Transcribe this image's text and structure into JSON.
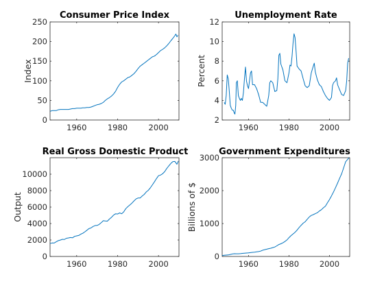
{
  "figure": {
    "background": "#ffffff",
    "line_color": "#0072bd"
  },
  "chart_data": [
    {
      "type": "line",
      "title": "Consumer Price Index",
      "xlabel": "",
      "ylabel": "Index",
      "xlim": [
        1947,
        2010
      ],
      "ylim": [
        0,
        250
      ],
      "xticks": [
        1960,
        1980,
        2000
      ],
      "yticks": [
        0,
        50,
        100,
        150,
        200,
        250
      ],
      "grid": false,
      "x": [
        1947,
        1948,
        1949,
        1950,
        1951,
        1952,
        1953,
        1954,
        1955,
        1956,
        1957,
        1958,
        1959,
        1960,
        1961,
        1962,
        1963,
        1964,
        1965,
        1966,
        1967,
        1968,
        1969,
        1970,
        1971,
        1972,
        1973,
        1974,
        1975,
        1976,
        1977,
        1978,
        1979,
        1980,
        1981,
        1982,
        1983,
        1984,
        1985,
        1986,
        1987,
        1988,
        1989,
        1990,
        1991,
        1992,
        1993,
        1994,
        1995,
        1996,
        1997,
        1998,
        1999,
        2000,
        2001,
        2002,
        2003,
        2004,
        2005,
        2006,
        2007,
        2008,
        2008.5,
        2009,
        2009.5
      ],
      "series": [
        {
          "values": [
            22,
            24,
            24,
            24,
            26,
            27,
            27,
            27,
            27,
            27,
            28,
            29,
            29,
            30,
            30,
            30,
            31,
            31,
            32,
            32,
            33,
            35,
            37,
            39,
            40,
            42,
            45,
            50,
            54,
            57,
            61,
            66,
            73,
            83,
            91,
            97,
            100,
            104,
            108,
            110,
            114,
            118,
            124,
            131,
            137,
            141,
            145,
            149,
            153,
            157,
            161,
            163,
            167,
            172,
            177,
            180,
            184,
            189,
            195,
            202,
            208,
            215,
            219,
            212,
            216
          ]
        }
      ]
    },
    {
      "type": "line",
      "title": "Unemployment Rate",
      "xlabel": "",
      "ylabel": "Percent",
      "xlim": [
        1947,
        2010
      ],
      "ylim": [
        2,
        12
      ],
      "xticks": [
        1960,
        1980,
        2000
      ],
      "yticks": [
        2,
        4,
        6,
        8,
        10,
        12
      ],
      "grid": false,
      "x": [
        1948,
        1948.5,
        1949,
        1949.5,
        1950,
        1950.5,
        1951,
        1951.5,
        1952,
        1952.5,
        1953,
        1953.3,
        1953.7,
        1954,
        1954.5,
        1955,
        1955.5,
        1956,
        1956.5,
        1957,
        1957.5,
        1958,
        1958.5,
        1959,
        1959.5,
        1960,
        1960.5,
        1961,
        1961.5,
        1962,
        1963,
        1964,
        1965,
        1966,
        1967,
        1968,
        1969,
        1970,
        1970.5,
        1971,
        1972,
        1973,
        1974,
        1974.5,
        1975,
        1975.5,
        1976,
        1977,
        1978,
        1979,
        1980,
        1980.5,
        1981,
        1981.5,
        1982,
        1982.5,
        1983,
        1983.5,
        1984,
        1985,
        1986,
        1987,
        1988,
        1989,
        1990,
        1991,
        1992,
        1992.5,
        1993,
        1994,
        1995,
        1996,
        1997,
        1998,
        1999,
        2000,
        2001,
        2001.5,
        2002,
        2003,
        2003.5,
        2004,
        2005,
        2006,
        2007,
        2008,
        2008.5,
        2009,
        2009.5
      ],
      "series": [
        {
          "values": [
            3.8,
            3.6,
            4.5,
            6.6,
            6.2,
            5.0,
            3.5,
            3.2,
            3.0,
            3.0,
            2.7,
            2.6,
            3.5,
            5.8,
            6.0,
            4.5,
            4.2,
            4.0,
            4.2,
            4.0,
            4.8,
            6.2,
            7.4,
            6.0,
            5.5,
            5.2,
            6.0,
            6.8,
            7.0,
            5.6,
            5.6,
            5.2,
            4.6,
            3.8,
            3.8,
            3.6,
            3.4,
            4.5,
            5.8,
            6.0,
            5.8,
            4.9,
            5.0,
            6.2,
            8.6,
            8.8,
            7.7,
            7.1,
            6.0,
            5.8,
            6.8,
            7.6,
            7.5,
            8.5,
            9.8,
            10.8,
            10.4,
            9.0,
            7.5,
            7.2,
            7.0,
            6.2,
            5.5,
            5.3,
            5.5,
            6.8,
            7.5,
            7.8,
            6.9,
            6.1,
            5.6,
            5.4,
            4.9,
            4.5,
            4.2,
            4.0,
            4.3,
            5.5,
            5.8,
            6.0,
            6.3,
            5.6,
            5.1,
            4.6,
            4.5,
            5.0,
            6.0,
            7.8,
            8.3
          ]
        }
      ]
    },
    {
      "type": "line",
      "title": "Real Gross Domestic Product",
      "xlabel": "",
      "ylabel": "Output",
      "xlim": [
        1947,
        2010
      ],
      "ylim": [
        0,
        12000
      ],
      "xticks": [
        1960,
        1980,
        2000
      ],
      "yticks": [
        0,
        2000,
        4000,
        6000,
        8000,
        10000
      ],
      "grid": false,
      "x": [
        1947,
        1948,
        1949,
        1950,
        1951,
        1952,
        1953,
        1954,
        1955,
        1956,
        1957,
        1958,
        1959,
        1960,
        1961,
        1962,
        1963,
        1964,
        1965,
        1966,
        1967,
        1968,
        1969,
        1970,
        1971,
        1972,
        1973,
        1974,
        1975,
        1976,
        1977,
        1978,
        1979,
        1980,
        1981,
        1982,
        1983,
        1984,
        1985,
        1986,
        1987,
        1988,
        1989,
        1990,
        1991,
        1992,
        1993,
        1994,
        1995,
        1996,
        1997,
        1998,
        1999,
        2000,
        2001,
        2002,
        2003,
        2004,
        2005,
        2006,
        2007,
        2008,
        2009,
        2009.7
      ],
      "series": [
        {
          "values": [
            1570,
            1640,
            1630,
            1780,
            1920,
            1990,
            2080,
            2070,
            2210,
            2250,
            2300,
            2270,
            2440,
            2500,
            2550,
            2710,
            2820,
            2990,
            3180,
            3380,
            3470,
            3640,
            3760,
            3770,
            3890,
            4100,
            4340,
            4310,
            4290,
            4540,
            4750,
            5020,
            5180,
            5160,
            5290,
            5190,
            5420,
            5810,
            6050,
            6260,
            6480,
            6740,
            6980,
            7110,
            7100,
            7340,
            7540,
            7840,
            8030,
            8330,
            8700,
            9070,
            9470,
            9820,
            9890,
            10050,
            10300,
            10680,
            11000,
            11300,
            11520,
            11550,
            11200,
            11600
          ]
        }
      ]
    },
    {
      "type": "line",
      "title": "Government Expenditures",
      "xlabel": "",
      "ylabel": "Billions of $",
      "xlim": [
        1947,
        2010
      ],
      "ylim": [
        0,
        3000
      ],
      "xticks": [
        1960,
        1980,
        2000
      ],
      "yticks": [
        0,
        1000,
        2000,
        3000
      ],
      "grid": false,
      "x": [
        1947,
        1948,
        1949,
        1950,
        1951,
        1952,
        1953,
        1954,
        1955,
        1956,
        1957,
        1958,
        1959,
        1960,
        1961,
        1962,
        1963,
        1964,
        1965,
        1966,
        1967,
        1968,
        1969,
        1970,
        1971,
        1972,
        1973,
        1974,
        1975,
        1976,
        1977,
        1978,
        1979,
        1980,
        1981,
        1982,
        1983,
        1984,
        1985,
        1986,
        1987,
        1988,
        1989,
        1990,
        1991,
        1992,
        1993,
        1994,
        1995,
        1996,
        1997,
        1998,
        1999,
        2000,
        2001,
        2002,
        2003,
        2004,
        2005,
        2006,
        2007,
        2008,
        2009,
        2009.7
      ],
      "series": [
        {
          "values": [
            30,
            35,
            42,
            45,
            60,
            75,
            83,
            81,
            82,
            86,
            94,
            101,
            104,
            108,
            116,
            125,
            132,
            139,
            147,
            163,
            189,
            206,
            221,
            237,
            251,
            268,
            287,
            323,
            362,
            385,
            415,
            455,
            503,
            570,
            633,
            684,
            736,
            801,
            880,
            946,
            1010,
            1055,
            1130,
            1200,
            1245,
            1270,
            1300,
            1330,
            1380,
            1420,
            1480,
            1530,
            1630,
            1730,
            1840,
            1960,
            2090,
            2230,
            2370,
            2510,
            2690,
            2880,
            2950,
            3000
          ]
        }
      ]
    }
  ]
}
